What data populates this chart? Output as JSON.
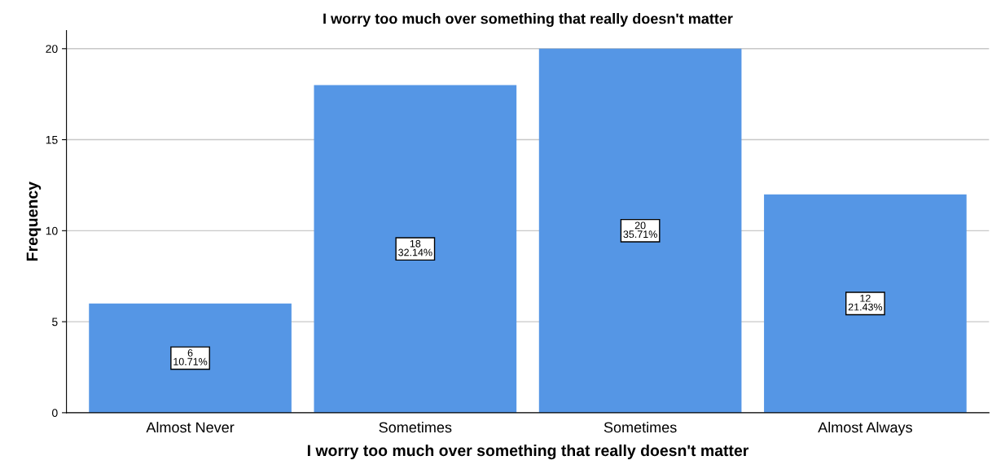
{
  "chart_data": {
    "type": "bar",
    "title": "I worry too much over something that really doesn't matter",
    "xlabel": "I worry too much over something that really doesn't matter",
    "ylabel": "Frequency",
    "categories": [
      "Almost Never",
      "Sometimes",
      "Sometimes",
      "Almost Always"
    ],
    "values": [
      6,
      18,
      20,
      12
    ],
    "value_labels": [
      "6\n10.71%",
      "18\n32.14%",
      "20\n35.71%",
      "12\n21.43%"
    ],
    "color": "#5596e5",
    "ylim": [
      0,
      21
    ],
    "yticks": [
      0,
      5,
      10,
      15,
      20
    ],
    "grid": "y",
    "legend": false
  }
}
